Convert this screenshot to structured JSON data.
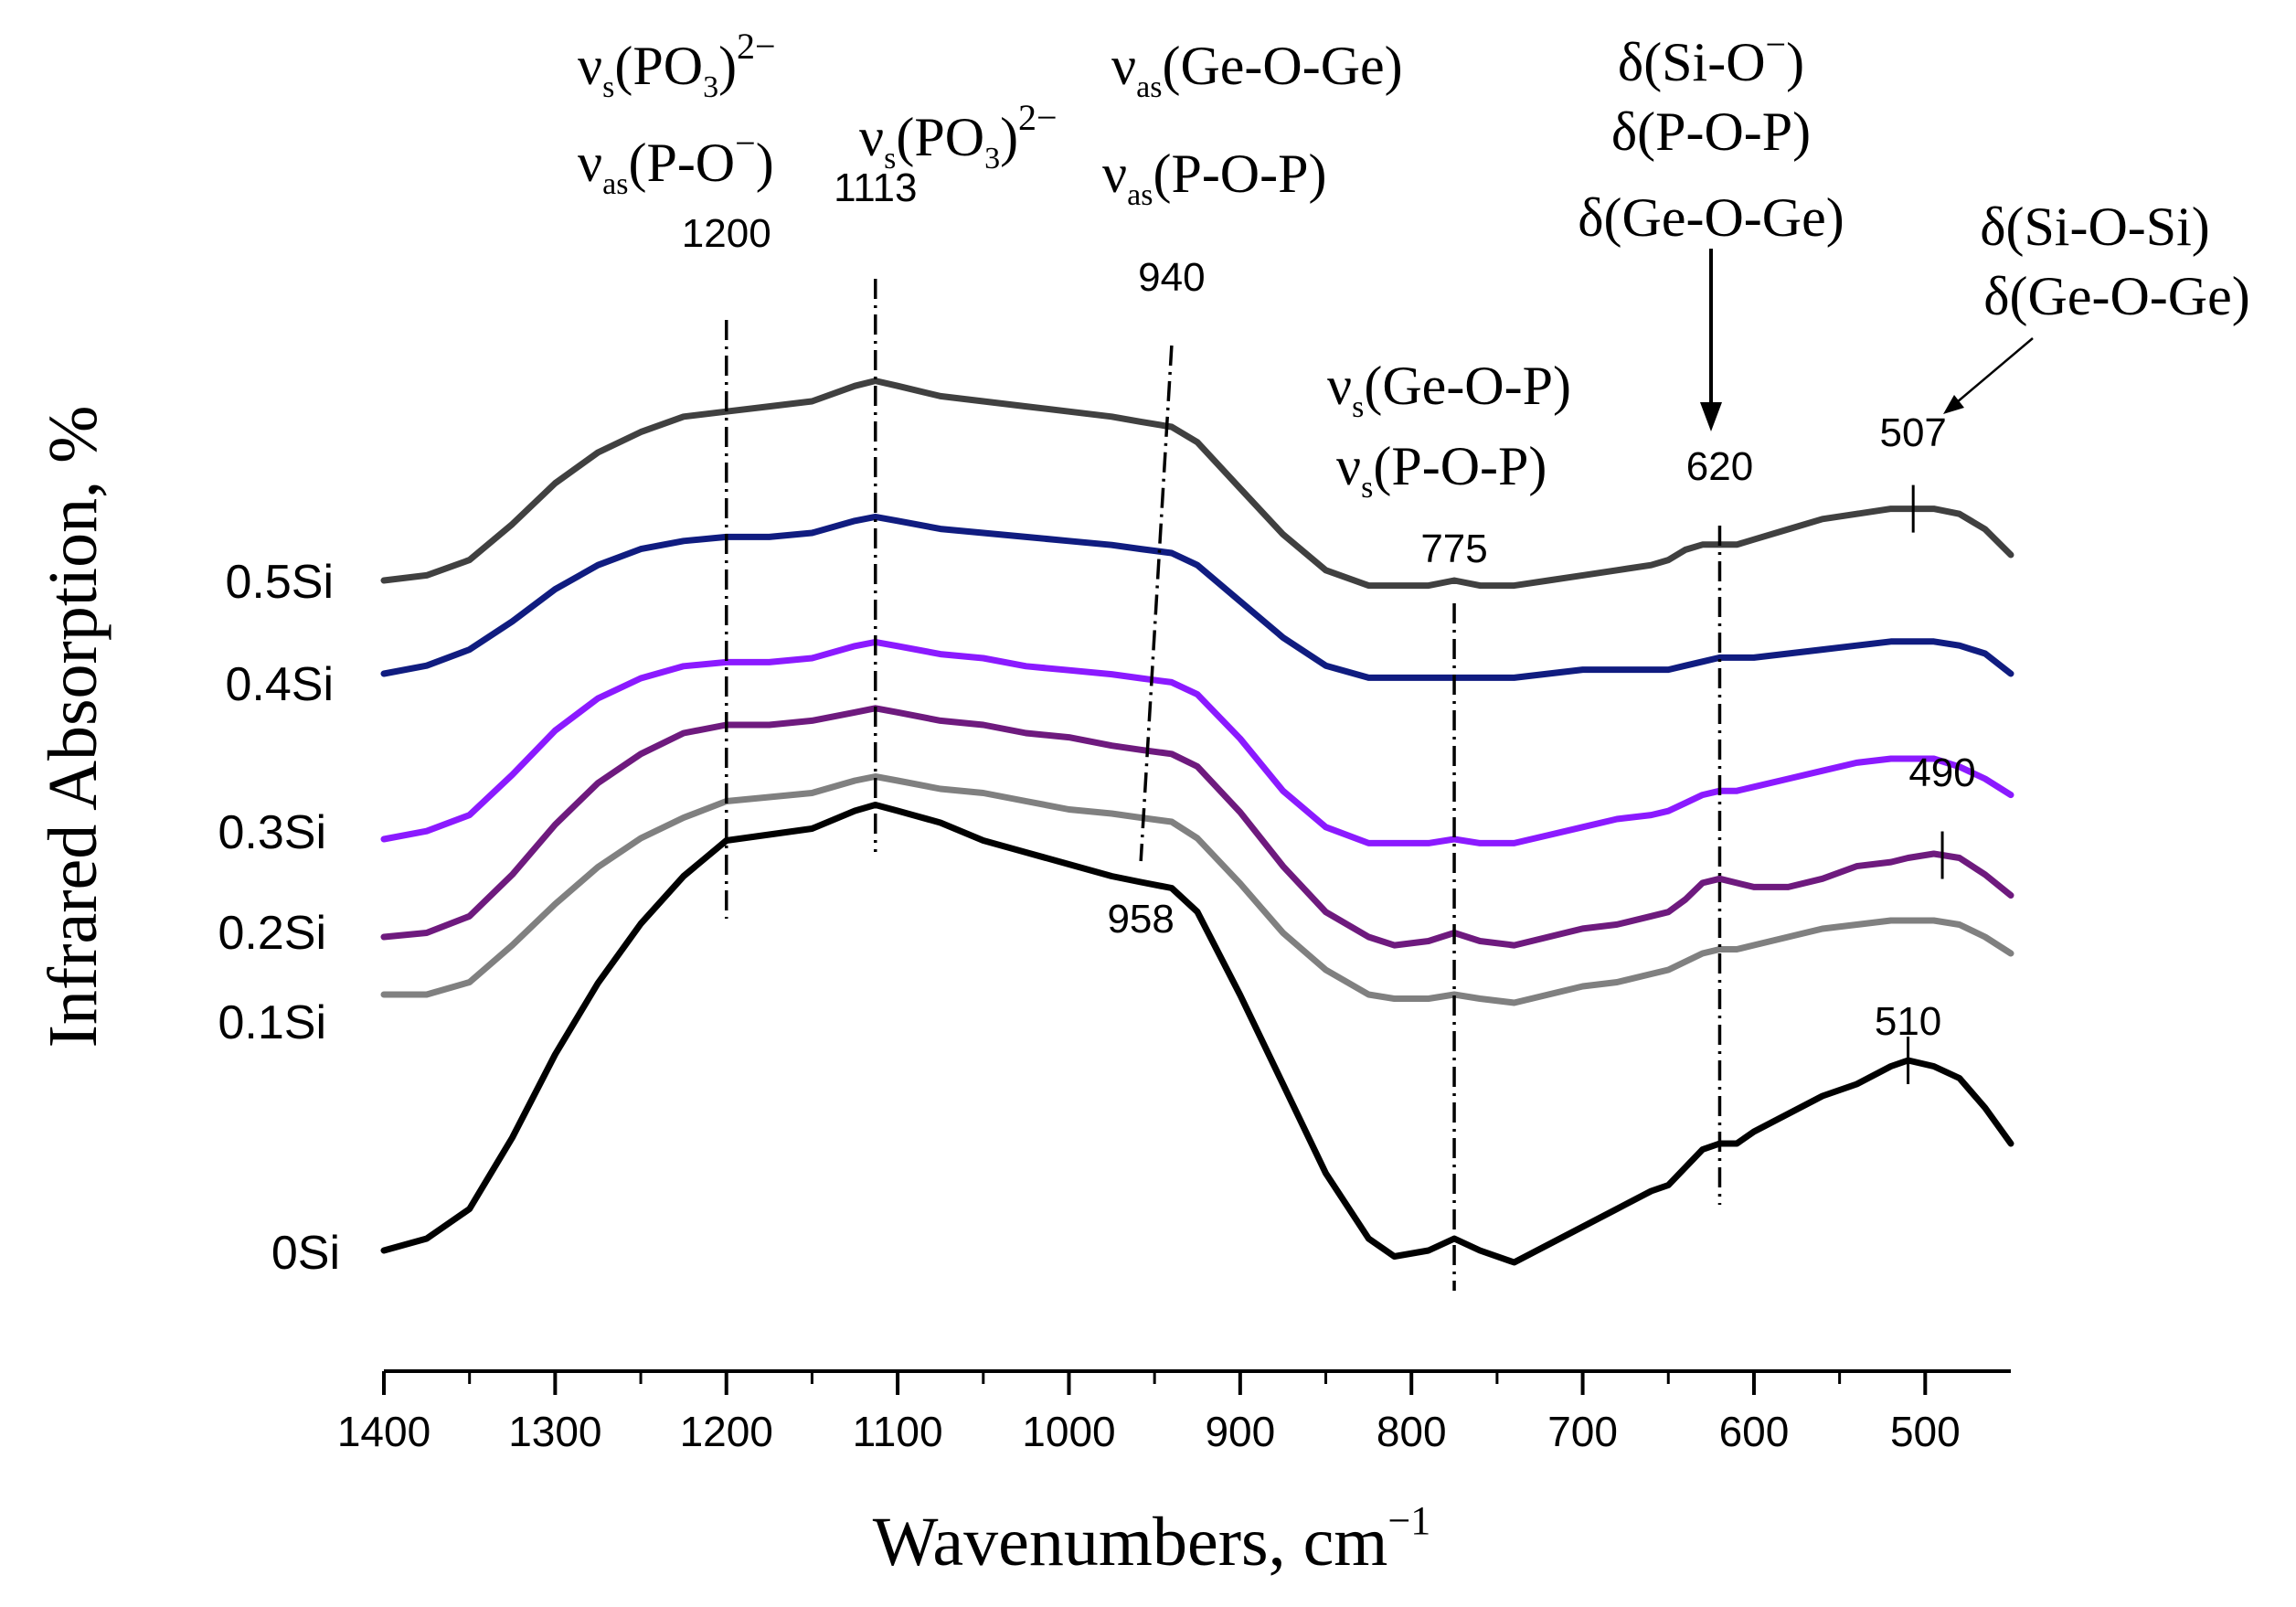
{
  "chart_data": {
    "type": "line",
    "title": "",
    "xlabel": "Wavenumbers, cm",
    "xlabel_superscript": "−1",
    "ylabel": "Infrared Absorption, %",
    "xlim": [
      1400,
      450
    ],
    "x_reversed": true,
    "xticks": [
      1400,
      1300,
      1200,
      1100,
      1000,
      900,
      800,
      700,
      600,
      500
    ],
    "yticks_shown": false,
    "grid": false,
    "series": [
      {
        "name": "0Si",
        "color": "#000000",
        "x": [
          1400,
          1375,
          1350,
          1325,
          1300,
          1275,
          1250,
          1225,
          1200,
          1175,
          1150,
          1125,
          1113,
          1100,
          1075,
          1050,
          1025,
          1000,
          975,
          958,
          940,
          925,
          900,
          875,
          850,
          825,
          810,
          790,
          775,
          760,
          740,
          720,
          700,
          680,
          660,
          650,
          640,
          630,
          620,
          610,
          600,
          580,
          560,
          540,
          520,
          510,
          495,
          480,
          465,
          450
        ],
        "y": [
          0.0,
          0.02,
          0.07,
          0.19,
          0.33,
          0.45,
          0.55,
          0.63,
          0.69,
          0.7,
          0.71,
          0.74,
          0.75,
          0.74,
          0.72,
          0.69,
          0.67,
          0.65,
          0.63,
          0.62,
          0.61,
          0.57,
          0.43,
          0.28,
          0.13,
          0.02,
          -0.01,
          0.0,
          0.02,
          0.0,
          -0.02,
          0.01,
          0.04,
          0.07,
          0.1,
          0.11,
          0.14,
          0.17,
          0.18,
          0.18,
          0.2,
          0.23,
          0.26,
          0.28,
          0.31,
          0.32,
          0.31,
          0.29,
          0.24,
          0.18
        ]
      },
      {
        "name": "0.1Si",
        "color": "#808080",
        "x": [
          1400,
          1375,
          1350,
          1325,
          1300,
          1275,
          1250,
          1225,
          1200,
          1175,
          1150,
          1125,
          1113,
          1100,
          1075,
          1050,
          1025,
          1000,
          975,
          958,
          940,
          925,
          900,
          875,
          850,
          825,
          810,
          790,
          775,
          760,
          740,
          720,
          700,
          680,
          660,
          650,
          640,
          630,
          620,
          610,
          600,
          580,
          560,
          540,
          520,
          510,
          495,
          480,
          465,
          450
        ],
        "y": [
          0.0,
          0.0,
          0.03,
          0.12,
          0.22,
          0.31,
          0.38,
          0.43,
          0.47,
          0.48,
          0.49,
          0.52,
          0.53,
          0.52,
          0.5,
          0.49,
          0.47,
          0.45,
          0.44,
          0.43,
          0.42,
          0.38,
          0.27,
          0.15,
          0.06,
          0.0,
          -0.01,
          -0.01,
          0.0,
          -0.01,
          -0.02,
          0.0,
          0.02,
          0.03,
          0.05,
          0.06,
          0.08,
          0.1,
          0.11,
          0.11,
          0.12,
          0.14,
          0.16,
          0.17,
          0.18,
          0.18,
          0.18,
          0.17,
          0.14,
          0.1
        ]
      },
      {
        "name": "0.2Si",
        "color": "#6E1A7E",
        "x": [
          1400,
          1375,
          1350,
          1325,
          1300,
          1275,
          1250,
          1225,
          1200,
          1175,
          1150,
          1125,
          1113,
          1100,
          1075,
          1050,
          1025,
          1000,
          975,
          958,
          940,
          925,
          900,
          875,
          850,
          825,
          810,
          790,
          775,
          760,
          740,
          720,
          700,
          680,
          660,
          650,
          640,
          630,
          620,
          610,
          600,
          580,
          560,
          540,
          520,
          510,
          495,
          480,
          465,
          450
        ],
        "y": [
          0.0,
          0.01,
          0.05,
          0.15,
          0.27,
          0.37,
          0.44,
          0.49,
          0.51,
          0.51,
          0.52,
          0.54,
          0.55,
          0.54,
          0.52,
          0.51,
          0.49,
          0.48,
          0.46,
          0.45,
          0.44,
          0.41,
          0.3,
          0.17,
          0.06,
          0.0,
          -0.02,
          -0.01,
          0.01,
          -0.01,
          -0.02,
          0.0,
          0.02,
          0.03,
          0.05,
          0.06,
          0.09,
          0.13,
          0.14,
          0.13,
          0.12,
          0.12,
          0.14,
          0.17,
          0.18,
          0.19,
          0.2,
          0.19,
          0.15,
          0.1
        ]
      },
      {
        "name": "0.3Si",
        "color": "#8B1AFF",
        "x": [
          1400,
          1375,
          1350,
          1325,
          1300,
          1275,
          1250,
          1225,
          1200,
          1175,
          1150,
          1125,
          1113,
          1100,
          1075,
          1050,
          1025,
          1000,
          975,
          958,
          940,
          925,
          900,
          875,
          850,
          825,
          810,
          790,
          775,
          760,
          740,
          720,
          700,
          680,
          660,
          650,
          640,
          630,
          620,
          610,
          600,
          580,
          560,
          540,
          520,
          510,
          495,
          480,
          465,
          450
        ],
        "y": [
          0.0,
          0.02,
          0.06,
          0.16,
          0.27,
          0.35,
          0.4,
          0.43,
          0.44,
          0.44,
          0.45,
          0.48,
          0.49,
          0.48,
          0.46,
          0.45,
          0.43,
          0.42,
          0.41,
          0.4,
          0.39,
          0.36,
          0.25,
          0.12,
          0.03,
          -0.01,
          -0.01,
          -0.01,
          0.0,
          -0.01,
          -0.01,
          0.01,
          0.03,
          0.05,
          0.06,
          0.07,
          0.09,
          0.11,
          0.12,
          0.12,
          0.13,
          0.15,
          0.17,
          0.19,
          0.2,
          0.2,
          0.2,
          0.18,
          0.15,
          0.11
        ]
      },
      {
        "name": "0.4Si",
        "color": "#101C80",
        "x": [
          1400,
          1375,
          1350,
          1325,
          1300,
          1275,
          1250,
          1225,
          1200,
          1175,
          1150,
          1125,
          1113,
          1100,
          1075,
          1050,
          1025,
          1000,
          975,
          958,
          940,
          925,
          900,
          875,
          850,
          825,
          810,
          790,
          775,
          760,
          740,
          720,
          700,
          680,
          660,
          650,
          640,
          630,
          620,
          610,
          600,
          580,
          560,
          540,
          520,
          510,
          495,
          480,
          465,
          450
        ],
        "y": [
          0.0,
          0.02,
          0.06,
          0.13,
          0.21,
          0.27,
          0.31,
          0.33,
          0.34,
          0.34,
          0.35,
          0.38,
          0.39,
          0.38,
          0.36,
          0.35,
          0.34,
          0.33,
          0.32,
          0.31,
          0.3,
          0.27,
          0.18,
          0.09,
          0.02,
          -0.01,
          -0.01,
          -0.01,
          -0.01,
          -0.01,
          -0.01,
          0.0,
          0.01,
          0.01,
          0.01,
          0.01,
          0.02,
          0.03,
          0.04,
          0.04,
          0.04,
          0.05,
          0.06,
          0.07,
          0.08,
          0.08,
          0.08,
          0.07,
          0.05,
          0.0
        ]
      },
      {
        "name": "0.5Si",
        "color": "#404040",
        "x": [
          1400,
          1375,
          1350,
          1325,
          1300,
          1275,
          1250,
          1225,
          1200,
          1175,
          1150,
          1125,
          1113,
          1100,
          1075,
          1050,
          1025,
          1000,
          975,
          958,
          940,
          925,
          900,
          875,
          850,
          825,
          810,
          790,
          775,
          760,
          740,
          720,
          700,
          680,
          660,
          650,
          640,
          630,
          620,
          610,
          600,
          580,
          560,
          540,
          520,
          510,
          495,
          480,
          465,
          450
        ],
        "y": [
          0.0,
          0.01,
          0.04,
          0.11,
          0.19,
          0.25,
          0.29,
          0.32,
          0.33,
          0.34,
          0.35,
          0.38,
          0.39,
          0.38,
          0.36,
          0.35,
          0.34,
          0.33,
          0.32,
          0.31,
          0.3,
          0.27,
          0.18,
          0.09,
          0.02,
          -0.01,
          -0.01,
          -0.01,
          0.0,
          -0.01,
          -0.01,
          0.0,
          0.01,
          0.02,
          0.03,
          0.04,
          0.06,
          0.07,
          0.07,
          0.07,
          0.08,
          0.1,
          0.12,
          0.13,
          0.14,
          0.14,
          0.14,
          0.13,
          0.1,
          0.05
        ]
      }
    ],
    "peak_markers": [
      {
        "label": "1200",
        "x": 1200
      },
      {
        "label": "1113",
        "x": 1113
      },
      {
        "label": "940",
        "x": 940
      },
      {
        "label": "958",
        "x": 958
      },
      {
        "label": "775",
        "x": 775
      },
      {
        "label": "620",
        "x": 620
      },
      {
        "label": "507",
        "x": 507
      },
      {
        "label": "490",
        "x": 490
      },
      {
        "label": "510",
        "x": 510
      }
    ],
    "annotations": {
      "a1200_line1": {
        "main": "ν",
        "sub": "s",
        "rest": "(PO",
        "sub2": "3",
        "rest2": ")",
        "sup": "2−"
      },
      "a1200_line2": {
        "main": "ν",
        "sub": "as",
        "rest": "(P-O",
        "sup": "−",
        "rest2": ")"
      },
      "a1113": {
        "main": "ν",
        "sub": "s",
        "rest": "(PO",
        "sub2": "3",
        "rest2": ")",
        "sup": "2−"
      },
      "a940_line1": {
        "main": "ν",
        "sub": "as",
        "rest": "(Ge-O-Ge)"
      },
      "a940_line2": {
        "main": "ν",
        "sub": "as",
        "rest": "(P-O-P)"
      },
      "a775_line1": {
        "main": "ν",
        "sub": "s",
        "rest": "(Ge-O-P)"
      },
      "a775_line2": {
        "main": "ν",
        "sub": "s",
        "rest": "(P-O-P)"
      },
      "a620_line1": {
        "main": "δ(Si-O",
        "sup": "−",
        "rest": ")"
      },
      "a620_line2": "δ(P-O-P)",
      "a620_line3": "δ(Ge-O-Ge)",
      "a507_line1": "δ(Si-O-Si)",
      "a507_line2": "δ(Ge-O-Ge)"
    },
    "axis_text": {
      "ylabel": "Infrared Absorption, %",
      "xlabel_main": "Wavenumbers, cm",
      "xlabel_sup": "−1"
    }
  }
}
